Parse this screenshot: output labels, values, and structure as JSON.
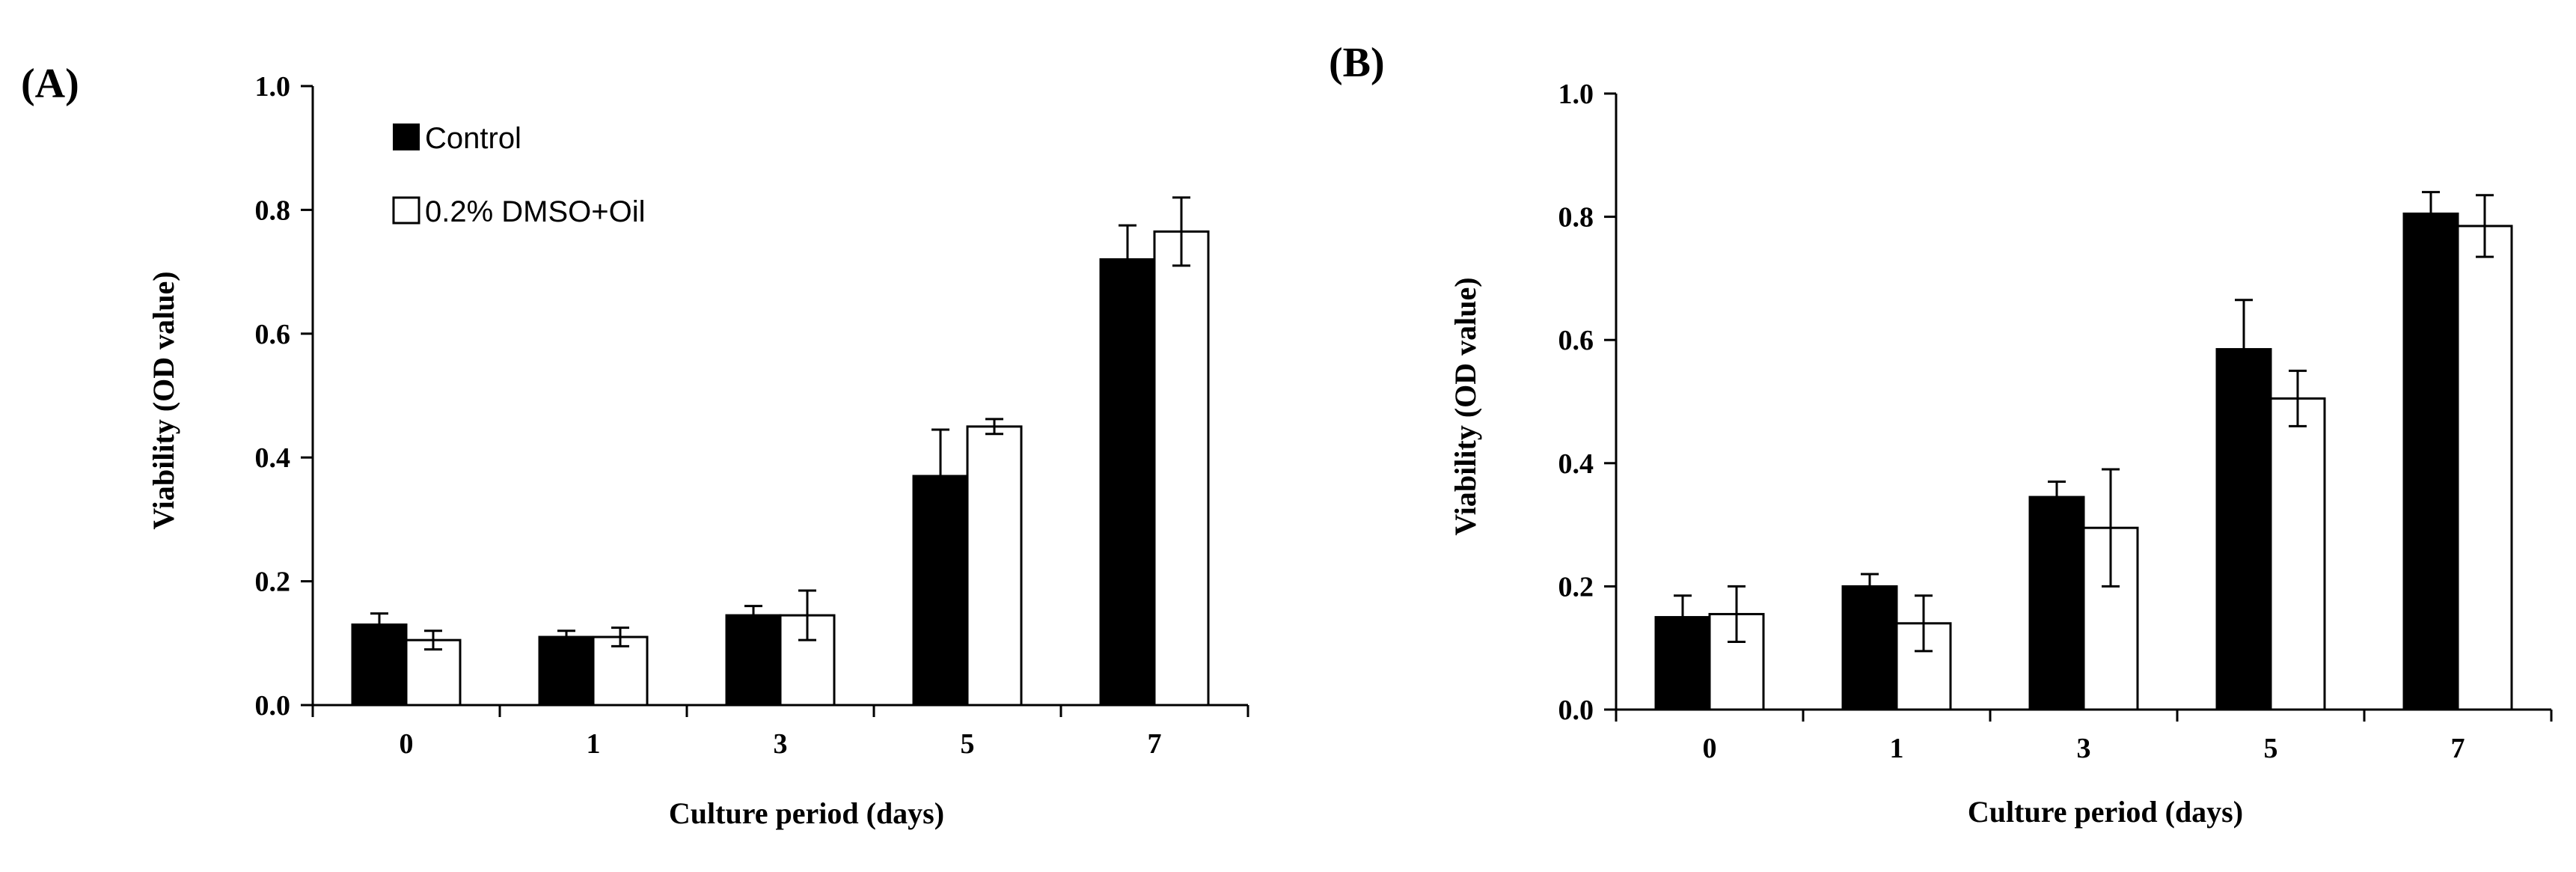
{
  "chart_data": [
    {
      "type": "bar",
      "panel_label": "(A)",
      "categories": [
        "0",
        "1",
        "3",
        "5",
        "7"
      ],
      "series": [
        {
          "name": "Control",
          "color": "#000000",
          "values": [
            0.13,
            0.11,
            0.145,
            0.37,
            0.72
          ],
          "errors": [
            0.018,
            0.01,
            0.015,
            0.075,
            0.055
          ]
        },
        {
          "name": "0.2% DMSO+Oil",
          "color": "#ffffff",
          "values": [
            0.105,
            0.11,
            0.145,
            0.45,
            0.765
          ],
          "errors": [
            0.015,
            0.015,
            0.04,
            0.012,
            0.055
          ]
        }
      ],
      "xlabel": "Culture period (days)",
      "ylabel": "Viability (OD  value)",
      "ylim": [
        0,
        1.0
      ],
      "yticks": [
        "0.0",
        "0.2",
        "0.4",
        "0.6",
        "0.8",
        "1.0"
      ],
      "legend": {
        "position": "top-left",
        "entries": [
          "Control",
          "0.2% DMSO+Oil"
        ]
      }
    },
    {
      "type": "bar",
      "panel_label": "(B)",
      "categories": [
        "0",
        "1",
        "3",
        "5",
        "7"
      ],
      "series": [
        {
          "name": "Control",
          "color": "#000000",
          "values": [
            0.15,
            0.2,
            0.345,
            0.585,
            0.805
          ],
          "errors": [
            0.035,
            0.02,
            0.025,
            0.08,
            0.035
          ]
        },
        {
          "name": "0.2% DMSO+Oil",
          "color": "#ffffff",
          "values": [
            0.155,
            0.14,
            0.295,
            0.505,
            0.785
          ],
          "errors": [
            0.045,
            0.045,
            0.095,
            0.045,
            0.05
          ]
        }
      ],
      "xlabel": "Culture period (days)",
      "ylabel": "Viability (OD  value)",
      "ylim": [
        0,
        1.0
      ],
      "yticks": [
        "0.0",
        "0.2",
        "0.4",
        "0.6",
        "0.8",
        "1.0"
      ]
    }
  ]
}
